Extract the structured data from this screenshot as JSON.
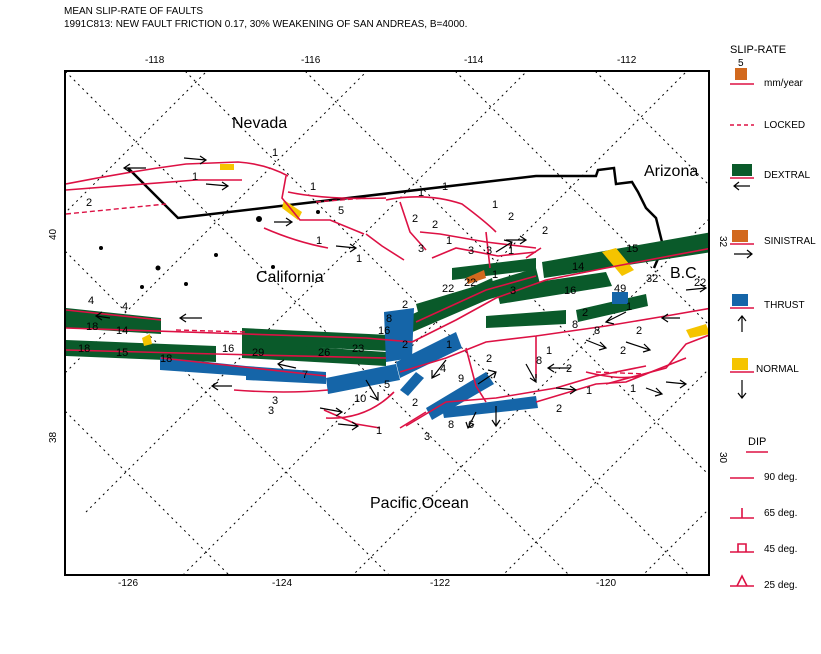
{
  "title_line1": "MEAN SLIP-RATE OF FAULTS",
  "title_line2": "1991C813: NEW FAULT FRICTION 0.17, 30% WEAKENING OF SAN ANDREAS, B=4000.",
  "top_lon_labels": [
    "-118",
    "-116",
    "-114",
    "-112"
  ],
  "bottom_lon_labels": [
    "-126",
    "-124",
    "-122",
    "-120"
  ],
  "left_lat_labels": [
    "40",
    "38"
  ],
  "right_lat_labels": [
    "32",
    "30"
  ],
  "places": {
    "nevada": "Nevada",
    "arizona": "Arizona",
    "california": "California",
    "bc": "B.C.",
    "ocean": "Pacific Ocean"
  },
  "slip_labels": [
    "1",
    "1",
    "2",
    "1",
    "5",
    "1",
    "1",
    "1",
    "2",
    "2",
    "1",
    "2",
    "1",
    "3",
    "1",
    "3",
    "3",
    "1",
    "2",
    "22",
    "1",
    "14",
    "15",
    "32",
    "22",
    "16",
    "49",
    "2",
    "8",
    "3",
    "22",
    "4",
    "4",
    "18",
    "14",
    "15",
    "18",
    "18",
    "16",
    "29",
    "26",
    "23",
    "16",
    "8",
    "2",
    "2",
    "7",
    "3",
    "10",
    "1",
    "5",
    "2",
    "4",
    "1",
    "9",
    "8",
    "6",
    "3",
    "2",
    "1",
    "2",
    "2",
    "1",
    "2",
    "1",
    "2",
    "1",
    "8",
    "8",
    "3"
  ],
  "legend": {
    "slip_rate_title": "SLIP-RATE",
    "scale_value": "5",
    "scale_unit": "mm/year",
    "locked": "LOCKED",
    "dextral": "DEXTRAL",
    "sinistral": "SINISTRAL",
    "thrust": "THRUST",
    "normal": "NORMAL",
    "dip_title": "DIP",
    "dip_90": "90 deg.",
    "dip_65": "65 deg.",
    "dip_45": "45 deg.",
    "dip_25": "25 deg."
  },
  "colors": {
    "fault_trace": "#dd1144",
    "dextral": "#0a5a2a",
    "sinistral": "#d2691e",
    "thrust": "#1565a8",
    "normal": "#f5c400",
    "border": "#000000",
    "graticule": "#000000"
  }
}
